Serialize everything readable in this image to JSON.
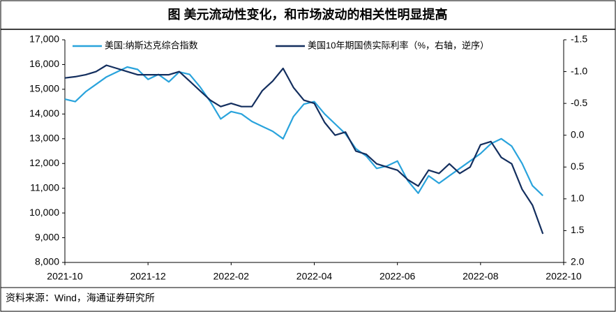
{
  "chart_data": {
    "type": "line",
    "title": "图  美元流动性变化，和市场波动的相关性明显提高",
    "source": "资料来源：Wind，海通证券研究所",
    "categories": [
      "2021-10",
      null,
      null,
      null,
      null,
      null,
      null,
      null,
      "2021-12",
      null,
      null,
      null,
      null,
      null,
      null,
      null,
      "2022-02",
      null,
      null,
      null,
      null,
      null,
      null,
      null,
      "2022-04",
      null,
      null,
      null,
      null,
      null,
      null,
      null,
      "2022-06",
      null,
      null,
      null,
      null,
      null,
      null,
      null,
      "2022-08",
      null,
      null,
      null,
      null,
      null,
      null,
      null,
      "2022-10"
    ],
    "series": [
      {
        "name": "美国:纳斯达克综合指数",
        "color": "#29a3dc",
        "values": [
          14600,
          14500,
          14900,
          15200,
          15500,
          15700,
          15900,
          15800,
          15400,
          15600,
          15300,
          15700,
          15600,
          15100,
          14500,
          13800,
          14100,
          14000,
          13700,
          13500,
          13300,
          13000,
          13900,
          14400,
          14500,
          14000,
          13600,
          13200,
          12600,
          12300,
          11800,
          11900,
          12100,
          11300,
          10800,
          11500,
          11200,
          11500,
          11800,
          12100,
          12400,
          12800,
          13000,
          12700,
          12000,
          11100,
          10700,
          null,
          null
        ]
      },
      {
        "name": "美国10年期国债实际利率（%，右轴，逆序）",
        "color": "#132e5e",
        "axis": "y2",
        "values": [
          -0.9,
          -0.92,
          -0.95,
          -1.0,
          -1.1,
          -1.05,
          -1.0,
          -0.95,
          -0.95,
          -0.95,
          -0.95,
          -1.0,
          -0.85,
          -0.7,
          -0.55,
          -0.45,
          -0.5,
          -0.45,
          -0.45,
          -0.7,
          -0.85,
          -1.05,
          -0.75,
          -0.55,
          -0.5,
          -0.2,
          0.0,
          -0.05,
          0.25,
          0.3,
          0.45,
          0.5,
          0.55,
          0.7,
          0.8,
          0.55,
          0.6,
          0.45,
          0.6,
          0.5,
          0.15,
          0.1,
          0.35,
          0.45,
          0.85,
          1.1,
          1.55,
          null,
          null
        ]
      }
    ],
    "ylim": [
      8000,
      17000
    ],
    "yticks": [
      {
        "value": 8000,
        "label": "8,000"
      },
      {
        "value": 9000,
        "label": "9,000"
      },
      {
        "value": 10000,
        "label": "10,000"
      },
      {
        "value": 11000,
        "label": "11,000"
      },
      {
        "value": 12000,
        "label": "12,000"
      },
      {
        "value": 13000,
        "label": "13,000"
      },
      {
        "value": 14000,
        "label": "14,000"
      },
      {
        "value": 15000,
        "label": "15,000"
      },
      {
        "value": 16000,
        "label": "16,000"
      },
      {
        "value": 17000,
        "label": "17,000"
      }
    ],
    "y2lim": [
      2.0,
      -1.5
    ],
    "y2ticks": [
      {
        "value": 2,
        "label": "2.0"
      },
      1.5,
      {
        "value": 1,
        "label": "1.0"
      },
      0.5,
      {
        "value": 0,
        "label": "0.0"
      },
      -0.5,
      {
        "value": -1,
        "label": "-1.0"
      },
      -1.5
    ]
  }
}
